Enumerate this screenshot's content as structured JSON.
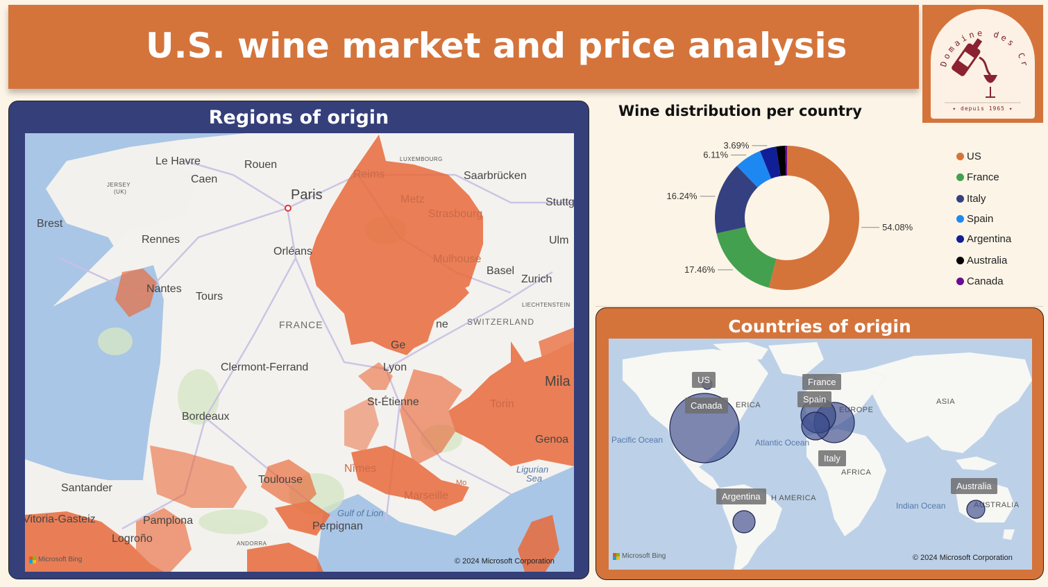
{
  "header": {
    "title": "U.S. wine market and price analysis"
  },
  "logo": {
    "brand": "Domaine des Croix",
    "tagline": "✦ depuis 1965 ✦"
  },
  "regions": {
    "title": "Regions of origin",
    "copyright": "© 2024 Microsoft Corporation",
    "bing": "Microsoft Bing",
    "labels": {
      "le_havre": "Le Havre",
      "rouen": "Rouen",
      "caen": "Caen",
      "jersey": "JERSEY",
      "jersey_uk": "(UK)",
      "paris": "Paris",
      "brest": "Brest",
      "rennes": "Rennes",
      "orleans": "Orléans",
      "nantes": "Nantes",
      "tours": "Tours",
      "reims": "Reims",
      "luxembourg": "LUXEMBOURG",
      "saarbrucken": "Saarbrücken",
      "metz": "Metz",
      "strasbourg": "Strasbourg",
      "stuttg": "Stuttg",
      "ulm": "Ulm",
      "mulhouse": "Mulhouse",
      "basel": "Basel",
      "zurich": "Zurich",
      "liechtenstein": "LIECHTENSTEIN",
      "switzerland": "SWITZERLAND",
      "france": "FRANCE",
      "geneva": "Ge",
      "clermont": "Clermont-Ferrand",
      "lyon": "Lyon",
      "st_etienne": "St-Étienne",
      "milan": "Mila",
      "torino": "Torin",
      "genoa": "Genoa",
      "bordeaux": "Bordeaux",
      "ligurian": "Ligurian",
      "sea": "Sea",
      "monaco": "Mo",
      "toulouse": "Toulouse",
      "nimes": "Nîmes",
      "marseille": "Marseille",
      "santander": "Santander",
      "vitoria": "Vitoria-Gasteiz",
      "pamplona": "Pamplona",
      "logrono": "Logroño",
      "gulf": "Gulf of Lion",
      "perpignan": "Perpignan",
      "andorra": "ANDORRA",
      "ne": "ne"
    }
  },
  "chart_data": {
    "type": "pie",
    "title": "Wine distribution per country",
    "categories": [
      "US",
      "France",
      "Italy",
      "Spain",
      "Argentina",
      "Australia",
      "Canada"
    ],
    "values": [
      54.08,
      17.46,
      16.24,
      6.11,
      3.69,
      2.0,
      0.42
    ],
    "value_labels": [
      "54.08%",
      "17.46%",
      "16.24%",
      "6.11%",
      "3.69%",
      "",
      ""
    ],
    "colors": [
      "#d4743b",
      "#43a04f",
      "#344080",
      "#1e88f2",
      "#101e98",
      "#000000",
      "#6a0d91"
    ],
    "donut": true,
    "legend": "right"
  },
  "countries": {
    "title": "Countries of origin",
    "copyright": "© 2024 Microsoft Corporation",
    "bing": "Microsoft Bing",
    "tooltips": {
      "us": "US",
      "canada": "Canada",
      "france": "France",
      "spain": "Spain",
      "italy": "Italy",
      "argentina": "Argentina",
      "australia": "Australia"
    },
    "labels": {
      "pacific": "Pacific Ocean",
      "atlantic": "Atlantic Ocean",
      "indian": "Indian Ocean",
      "asia": "ASIA",
      "europe": "EUROPE",
      "africa": "AFRICA",
      "south_america": "H AMERICA",
      "australia": "AUSTRALIA",
      "north_america": "ERICA"
    }
  }
}
